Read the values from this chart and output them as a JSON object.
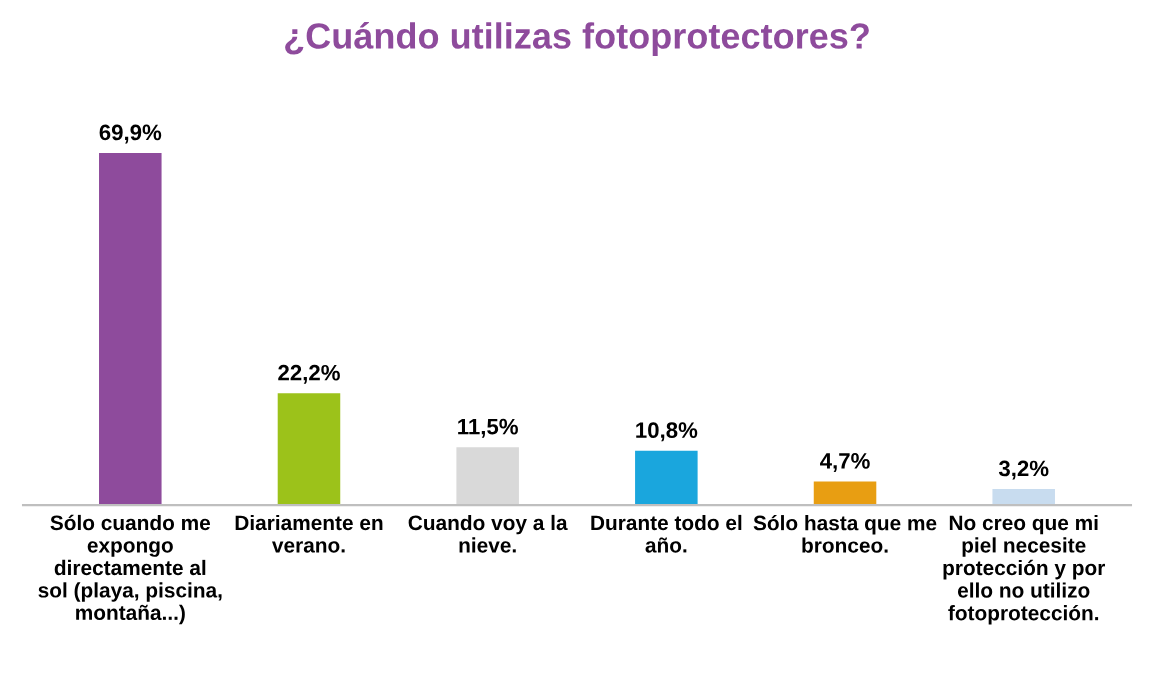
{
  "chart_data": {
    "type": "bar",
    "title": "¿Cuándo utilizas fotoprotectores?",
    "categories": [
      "Sólo cuando me\nexpongo\ndirectamente al\nsol (playa, piscina,\nmontaña...)",
      "Diariamente en\nverano.",
      "Cuando voy a la\nnieve.",
      "Durante todo el\naño.",
      "Sólo hasta que me\nbronceo.",
      "No creo que mi\npiel necesite\nprotección y por\nello no utilizo\nfotoprotección."
    ],
    "values": [
      69.9,
      22.2,
      11.5,
      10.8,
      4.7,
      3.2
    ],
    "value_labels": [
      "69,9%",
      "22,2%",
      "11,5%",
      "10,8%",
      "4,7%",
      "3,2%"
    ],
    "colors": [
      "#8e4b9c",
      "#9cc21a",
      "#d9d9d9",
      "#1aa6dd",
      "#e89e12",
      "#c8dcef"
    ],
    "legend": false,
    "grid": false
  }
}
